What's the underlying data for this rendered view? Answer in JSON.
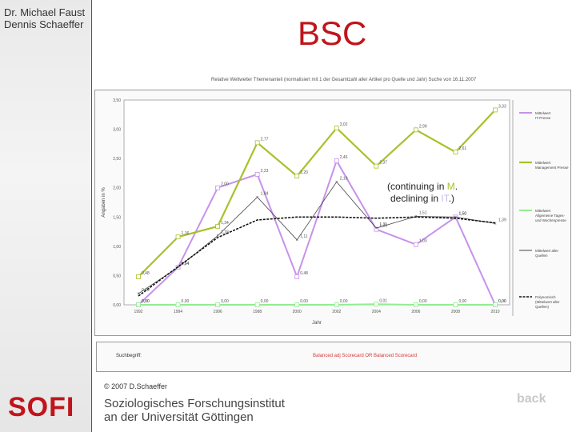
{
  "header": {
    "authors": [
      "Dr. Michael Faust",
      "Dennis Schaeffer"
    ],
    "title": "BSC"
  },
  "annotation": {
    "line1_prefix": "(continuing in ",
    "line1_highlight": "M",
    "line1_suffix": ".",
    "line2_prefix": "declining in ",
    "line2_highlight": "IT",
    "line2_suffix": ".)"
  },
  "source": {
    "label": "Suchbegriff:",
    "value": "Balanced adj Scorecard OR Balanced Scorecard"
  },
  "footer": {
    "copyright": "© 2007 D.Schaeffer",
    "logo": "SOFI",
    "institute_line1": "Soziologisches Forschungsinstitut",
    "institute_line2": "an der Universität Göttingen",
    "back_label": "back"
  },
  "colors": {
    "title": "#c0141c",
    "management": "#a6c22b",
    "it": "#c792ea",
    "general": "#90ee90",
    "average": "#444444",
    "moving": "#111111"
  },
  "chart_data": {
    "type": "line",
    "title": "Relative Weltweiter Themenanteil (normalisiert mit 1 der Gesamtzahl aller Artikel pro Quelle und Jahr) Suche von 16.11.2007",
    "xlabel": "Jahr",
    "ylabel": "Angaben in %",
    "x": [
      "1992",
      "1994",
      "1996",
      "1998",
      "2000",
      "2002",
      "2004",
      "2006",
      "2008",
      "2010"
    ],
    "ylim": [
      0,
      3.5
    ],
    "yticks": [
      "0,00",
      "0,50",
      "1,00",
      "1,50",
      "2,00",
      "2,50",
      "3,00",
      "3,50"
    ],
    "series": [
      {
        "name": "Mittelwert IT-Presse",
        "values": [
          0.0,
          0.64,
          2.0,
          2.23,
          0.48,
          2.46,
          1.29,
          1.03,
          1.5,
          0.0
        ]
      },
      {
        "name": "Mittelwert Management Presse",
        "values": [
          0.48,
          1.16,
          1.34,
          2.77,
          2.2,
          3.02,
          2.37,
          2.99,
          2.61,
          3.33
        ]
      },
      {
        "name": "Mittelwert Allgemeine Tages- und Wochenpresse",
        "values": [
          0.0,
          0.0,
          0.0,
          0.0,
          0.0,
          0.0,
          0.01,
          0.0,
          0.0,
          0.0
        ]
      },
      {
        "name": "Mittelwert aller Quellen",
        "values": [
          0.19,
          0.64,
          1.18,
          1.84,
          1.11,
          2.1,
          1.31,
          1.51,
          1.5,
          1.39
        ]
      },
      {
        "name": "Polynomisch (Mittelwert aller Quellen)",
        "values": [
          0.15,
          0.65,
          1.15,
          1.45,
          1.5,
          1.5,
          1.48,
          1.5,
          1.48,
          1.4
        ]
      }
    ],
    "data_labels": {
      "it": [
        "0,00",
        "0,64",
        "2,00",
        "2,23",
        "0,48",
        "2,46",
        "1,29",
        "1,03",
        "1,50",
        "0,00"
      ],
      "management": [
        "0,48",
        "1,16",
        "1,34",
        "2,77",
        "2,20",
        "3,02",
        "2,37",
        "2,99",
        "2,61",
        "3,33"
      ],
      "general": [
        "0,00",
        "0,00",
        "0,00",
        "0,00",
        "0,00",
        "0,00",
        "0,01",
        "0,00",
        "0,00",
        "0,00"
      ],
      "average": [
        "0,19",
        "0,64",
        "1,18",
        "1,84",
        "1,11",
        "2,10",
        "1,31",
        "1,51",
        "1,50",
        "1,39"
      ]
    },
    "legend_position": "right",
    "legend_labels": [
      "Mittelwert IT-Presse",
      "Mittelwert Management Presse",
      "Mittelwert Allgemeine Tages- und Wochenpresse",
      "Mittelwert aller Quellen",
      "Polynomisch (Mittelwert aller Quellen)"
    ],
    "grid": false
  }
}
